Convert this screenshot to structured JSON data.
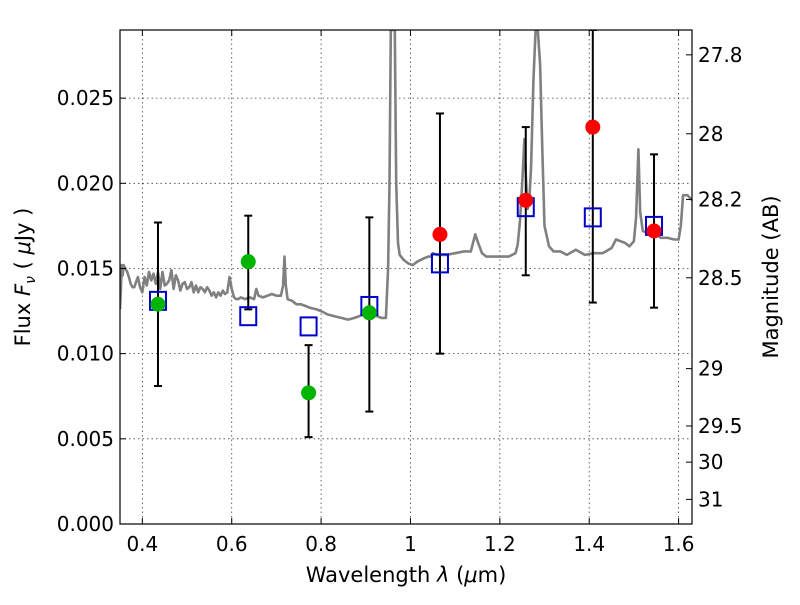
{
  "chart_data": {
    "type": "scatter",
    "xlabel": "Wavelength  λ (μm)",
    "ylabel": "Flux  F_ν  ( μJy )",
    "ylabel_parts": {
      "flux": "Flux",
      "fnu": "F",
      "nu": "ν",
      "unit_open": "(",
      "mu": "μ",
      "unit": "Jy",
      "unit_close": ")"
    },
    "xlabel_parts": {
      "wavelength": "Wavelength",
      "lambda": "λ",
      "unit_open": "(",
      "mu": "μ",
      "unit": "m)"
    },
    "y2label": "Magnitude (AB)",
    "xlim": [
      0.35,
      1.63
    ],
    "ylim": [
      0.0,
      0.029
    ],
    "grid": true,
    "x_ticks": [
      "0.4",
      "0.6",
      "0.8",
      "1",
      "1.2",
      "1.4",
      "1.6"
    ],
    "y_ticks": [
      "0.000",
      "0.005",
      "0.010",
      "0.015",
      "0.020",
      "0.025"
    ],
    "y2_ticks": [
      "27.8",
      "28",
      "28.2",
      "28.5",
      "29",
      "29.5",
      "30",
      "31"
    ],
    "colors": {
      "spectrum": "#808080",
      "green_points": "#00b400",
      "red_points": "#ff0000",
      "model_squares": "#0000cc",
      "errorbars": "#000000"
    },
    "spectrum": [
      [
        0.35,
        0.0126
      ],
      [
        0.352,
        0.0138
      ],
      [
        0.354,
        0.0152
      ],
      [
        0.356,
        0.0146
      ],
      [
        0.358,
        0.0152
      ],
      [
        0.362,
        0.015
      ],
      [
        0.366,
        0.0148
      ],
      [
        0.37,
        0.0145
      ],
      [
        0.374,
        0.0141
      ],
      [
        0.378,
        0.0139
      ],
      [
        0.382,
        0.0139
      ],
      [
        0.386,
        0.0142
      ],
      [
        0.39,
        0.0145
      ],
      [
        0.395,
        0.0139
      ],
      [
        0.4,
        0.0136
      ],
      [
        0.405,
        0.0145
      ],
      [
        0.41,
        0.014
      ],
      [
        0.415,
        0.0148
      ],
      [
        0.42,
        0.0143
      ],
      [
        0.425,
        0.0147
      ],
      [
        0.43,
        0.0141
      ],
      [
        0.435,
        0.0148
      ],
      [
        0.44,
        0.0138
      ],
      [
        0.445,
        0.0148
      ],
      [
        0.45,
        0.014
      ],
      [
        0.455,
        0.0141
      ],
      [
        0.46,
        0.0143
      ],
      [
        0.465,
        0.0149
      ],
      [
        0.47,
        0.0138
      ],
      [
        0.475,
        0.0146
      ],
      [
        0.48,
        0.0143
      ],
      [
        0.485,
        0.0137
      ],
      [
        0.49,
        0.0141
      ],
      [
        0.495,
        0.0142
      ],
      [
        0.5,
        0.0138
      ],
      [
        0.505,
        0.0139
      ],
      [
        0.51,
        0.0142
      ],
      [
        0.515,
        0.0136
      ],
      [
        0.52,
        0.014
      ],
      [
        0.525,
        0.0136
      ],
      [
        0.53,
        0.0139
      ],
      [
        0.535,
        0.0138
      ],
      [
        0.54,
        0.0136
      ],
      [
        0.545,
        0.0139
      ],
      [
        0.55,
        0.0137
      ],
      [
        0.555,
        0.0134
      ],
      [
        0.56,
        0.0136
      ],
      [
        0.565,
        0.0133
      ],
      [
        0.57,
        0.0136
      ],
      [
        0.575,
        0.0134
      ],
      [
        0.58,
        0.0137
      ],
      [
        0.585,
        0.0135
      ],
      [
        0.59,
        0.0136
      ],
      [
        0.595,
        0.0145
      ],
      [
        0.6,
        0.0138
      ],
      [
        0.605,
        0.0133
      ],
      [
        0.61,
        0.0132
      ],
      [
        0.615,
        0.0132
      ],
      [
        0.62,
        0.0133
      ],
      [
        0.63,
        0.0132
      ],
      [
        0.64,
        0.0133
      ],
      [
        0.65,
        0.0132
      ],
      [
        0.655,
        0.0138
      ],
      [
        0.66,
        0.0134
      ],
      [
        0.67,
        0.0133
      ],
      [
        0.68,
        0.0134
      ],
      [
        0.69,
        0.0135
      ],
      [
        0.7,
        0.0134
      ],
      [
        0.71,
        0.0134
      ],
      [
        0.715,
        0.014
      ],
      [
        0.718,
        0.0157
      ],
      [
        0.721,
        0.014
      ],
      [
        0.725,
        0.0132
      ],
      [
        0.735,
        0.0131
      ],
      [
        0.745,
        0.0129
      ],
      [
        0.755,
        0.0129
      ],
      [
        0.765,
        0.0128
      ],
      [
        0.775,
        0.0127
      ],
      [
        0.79,
        0.0126
      ],
      [
        0.8,
        0.0125
      ],
      [
        0.815,
        0.0123
      ],
      [
        0.83,
        0.0122
      ],
      [
        0.845,
        0.0121
      ],
      [
        0.86,
        0.012
      ],
      [
        0.875,
        0.0121
      ],
      [
        0.885,
        0.0122
      ],
      [
        0.895,
        0.0123
      ],
      [
        0.905,
        0.0123
      ],
      [
        0.915,
        0.0122
      ],
      [
        0.925,
        0.0122
      ],
      [
        0.935,
        0.0121
      ],
      [
        0.945,
        0.0121
      ],
      [
        0.95,
        0.015
      ],
      [
        0.953,
        0.02
      ],
      [
        0.956,
        0.029
      ],
      [
        0.96,
        0.029
      ],
      [
        0.965,
        0.029
      ],
      [
        0.968,
        0.02
      ],
      [
        0.972,
        0.0165
      ],
      [
        0.976,
        0.0158
      ],
      [
        0.985,
        0.0155
      ],
      [
        0.995,
        0.0153
      ],
      [
        1.005,
        0.0152
      ],
      [
        1.015,
        0.0154
      ],
      [
        1.03,
        0.0156
      ],
      [
        1.04,
        0.0157
      ],
      [
        1.045,
        0.0157
      ],
      [
        1.05,
        0.0159
      ],
      [
        1.06,
        0.0158
      ],
      [
        1.08,
        0.0158
      ],
      [
        1.1,
        0.0159
      ],
      [
        1.12,
        0.016
      ],
      [
        1.135,
        0.016
      ],
      [
        1.14,
        0.0165
      ],
      [
        1.145,
        0.017
      ],
      [
        1.15,
        0.0166
      ],
      [
        1.16,
        0.0159
      ],
      [
        1.17,
        0.0157
      ],
      [
        1.18,
        0.0157
      ],
      [
        1.2,
        0.0157
      ],
      [
        1.22,
        0.0157
      ],
      [
        1.235,
        0.0159
      ],
      [
        1.24,
        0.0164
      ],
      [
        1.245,
        0.0178
      ],
      [
        1.25,
        0.02
      ],
      [
        1.255,
        0.0226
      ],
      [
        1.258,
        0.0205
      ],
      [
        1.262,
        0.0185
      ],
      [
        1.266,
        0.019
      ],
      [
        1.27,
        0.021
      ],
      [
        1.275,
        0.026
      ],
      [
        1.28,
        0.029
      ],
      [
        1.285,
        0.029
      ],
      [
        1.29,
        0.027
      ],
      [
        1.295,
        0.022
      ],
      [
        1.3,
        0.0175
      ],
      [
        1.31,
        0.0163
      ],
      [
        1.32,
        0.016
      ],
      [
        1.335,
        0.016
      ],
      [
        1.35,
        0.0158
      ],
      [
        1.37,
        0.0161
      ],
      [
        1.39,
        0.0158
      ],
      [
        1.41,
        0.0159
      ],
      [
        1.43,
        0.0159
      ],
      [
        1.45,
        0.0162
      ],
      [
        1.46,
        0.0167
      ],
      [
        1.47,
        0.0166
      ],
      [
        1.48,
        0.0165
      ],
      [
        1.49,
        0.0163
      ],
      [
        1.5,
        0.0166
      ],
      [
        1.505,
        0.018
      ],
      [
        1.51,
        0.022
      ],
      [
        1.514,
        0.0183
      ],
      [
        1.52,
        0.0172
      ],
      [
        1.53,
        0.0171
      ],
      [
        1.54,
        0.0172
      ],
      [
        1.55,
        0.017
      ],
      [
        1.56,
        0.0168
      ],
      [
        1.575,
        0.0168
      ],
      [
        1.59,
        0.0167
      ],
      [
        1.6,
        0.0167
      ],
      [
        1.605,
        0.0175
      ],
      [
        1.61,
        0.0193
      ],
      [
        1.62,
        0.0193
      ],
      [
        1.63,
        0.019
      ]
    ],
    "errorbars": [
      {
        "x": 0.435,
        "low": 0.0081,
        "high": 0.0177
      },
      {
        "x": 0.637,
        "low": 0.0126,
        "high": 0.0181
      },
      {
        "x": 0.772,
        "low": 0.0051,
        "high": 0.0105
      },
      {
        "x": 0.908,
        "low": 0.0066,
        "high": 0.018
      },
      {
        "x": 1.066,
        "low": 0.01,
        "high": 0.0241
      },
      {
        "x": 1.258,
        "low": 0.0146,
        "high": 0.0233
      },
      {
        "x": 1.408,
        "low": 0.013,
        "high": 0.029
      },
      {
        "x": 1.545,
        "low": 0.0127,
        "high": 0.0217
      }
    ],
    "green_points": [
      {
        "x": 0.435,
        "y": 0.0129
      },
      {
        "x": 0.637,
        "y": 0.0154
      },
      {
        "x": 0.772,
        "y": 0.0077
      },
      {
        "x": 0.908,
        "y": 0.0124
      }
    ],
    "red_points": [
      {
        "x": 1.066,
        "y": 0.017
      },
      {
        "x": 1.258,
        "y": 0.019
      },
      {
        "x": 1.408,
        "y": 0.0233
      },
      {
        "x": 1.545,
        "y": 0.0172
      }
    ],
    "model_squares": [
      {
        "x": 0.435,
        "y": 0.0131
      },
      {
        "x": 0.637,
        "y": 0.0122
      },
      {
        "x": 0.772,
        "y": 0.0116
      },
      {
        "x": 0.908,
        "y": 0.0128
      },
      {
        "x": 1.066,
        "y": 0.0153
      },
      {
        "x": 1.258,
        "y": 0.0186
      },
      {
        "x": 1.408,
        "y": 0.018
      },
      {
        "x": 1.545,
        "y": 0.0175
      }
    ]
  }
}
